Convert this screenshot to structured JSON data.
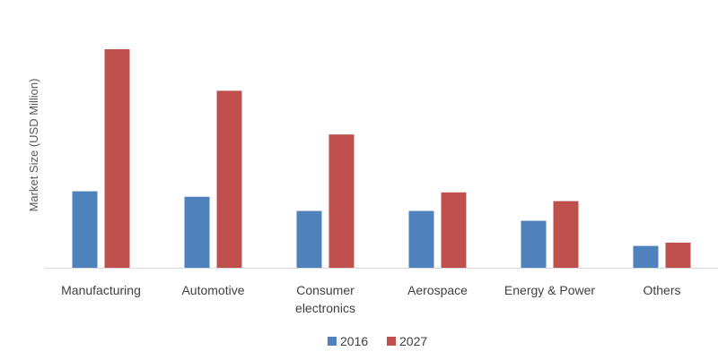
{
  "chart_data": {
    "type": "bar",
    "title": "",
    "xlabel": "",
    "ylabel": "Market Size (USD Million)",
    "ylim": [
      0,
      100
    ],
    "grid": false,
    "legend_position": "bottom",
    "categories": [
      [
        "Manufacturing"
      ],
      [
        "Automotive"
      ],
      [
        "Consumer",
        "electronics"
      ],
      [
        "Aerospace"
      ],
      [
        "Energy & Power"
      ],
      [
        "Others"
      ]
    ],
    "series": [
      {
        "name": "2016",
        "color": "#4f81bd",
        "values": [
          35,
          32.5,
          26,
          26,
          21.5,
          10
        ]
      },
      {
        "name": "2027",
        "color": "#c0504d",
        "values": [
          100,
          81,
          61,
          34.5,
          30.5,
          11.5
        ]
      }
    ]
  }
}
